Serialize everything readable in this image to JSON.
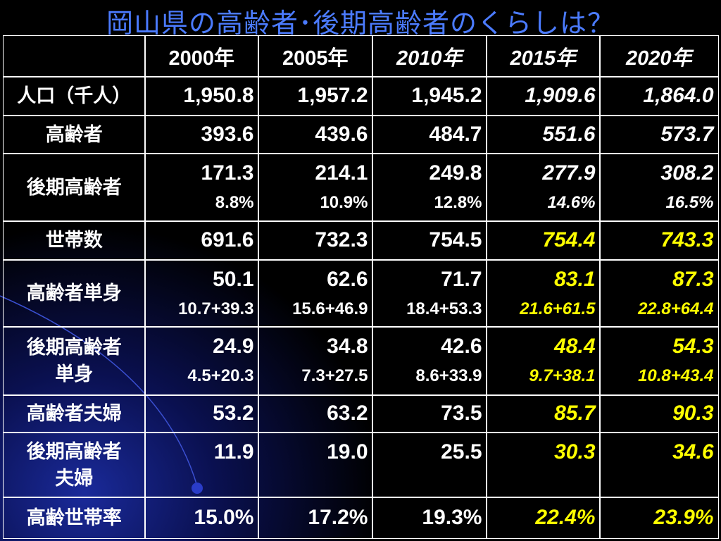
{
  "header": {
    "title": "岡山県の高齢者･後期高齢者のくらしは？"
  },
  "table": {
    "columns": [
      "2000年",
      "2005年",
      "2010年",
      "2015年",
      "2020年"
    ],
    "rows": [
      {
        "label_lines": [
          "人口（千人）"
        ],
        "cells": [
          {
            "main": "1,950.8"
          },
          {
            "main": "1,957.2"
          },
          {
            "main": "1,945.2"
          },
          {
            "main": "1,909.6"
          },
          {
            "main": "1,864.0"
          }
        ]
      },
      {
        "label_lines": [
          "高齢者"
        ],
        "cells": [
          {
            "main": "393.6"
          },
          {
            "main": "439.6"
          },
          {
            "main": "484.7"
          },
          {
            "main": "551.6"
          },
          {
            "main": "573.7"
          }
        ]
      },
      {
        "label_lines": [
          "後期高齢者"
        ],
        "cells": [
          {
            "main": "171.3",
            "sub": "8.8%"
          },
          {
            "main": "214.1",
            "sub": "10.9%"
          },
          {
            "main": "249.8",
            "sub": "12.8%"
          },
          {
            "main": "277.9",
            "sub": "14.6%"
          },
          {
            "main": "308.2",
            "sub": "16.5%"
          }
        ]
      },
      {
        "label_lines": [
          "世帯数"
        ],
        "cells": [
          {
            "main": "691.6"
          },
          {
            "main": "732.3"
          },
          {
            "main": "754.5"
          },
          {
            "main": "754.4"
          },
          {
            "main": "743.3"
          }
        ]
      },
      {
        "label_lines": [
          "高齢者単身"
        ],
        "cells": [
          {
            "main": "50.1",
            "sub": "10.7+39.3"
          },
          {
            "main": "62.6",
            "sub": "15.6+46.9"
          },
          {
            "main": "71.7",
            "sub": "18.4+53.3"
          },
          {
            "main": "83.1",
            "sub": "21.6+61.5"
          },
          {
            "main": "87.3",
            "sub": "22.8+64.4"
          }
        ]
      },
      {
        "label_lines": [
          "後期高齢者",
          "単身"
        ],
        "cells": [
          {
            "main": "24.9",
            "sub": "4.5+20.3"
          },
          {
            "main": "34.8",
            "sub": "7.3+27.5"
          },
          {
            "main": "42.6",
            "sub": "8.6+33.9"
          },
          {
            "main": "48.4",
            "sub": "9.7+38.1"
          },
          {
            "main": "54.3",
            "sub": "10.8+43.4"
          }
        ]
      },
      {
        "label_lines": [
          "高齢者夫婦"
        ],
        "cells": [
          {
            "main": "53.2"
          },
          {
            "main": "63.2"
          },
          {
            "main": "73.5"
          },
          {
            "main": "85.7"
          },
          {
            "main": "90.3"
          }
        ]
      },
      {
        "label_lines": [
          "後期高齢者",
          "夫婦"
        ],
        "cells": [
          {
            "main": "11.9"
          },
          {
            "main": "19.0"
          },
          {
            "main": "25.5"
          },
          {
            "main": "30.3"
          },
          {
            "main": "34.6"
          }
        ]
      },
      {
        "label_lines": [
          "高齢世帯率"
        ],
        "cells": [
          {
            "main": "15.0%"
          },
          {
            "main": "17.2%"
          },
          {
            "main": "19.3%"
          },
          {
            "main": "22.4%"
          },
          {
            "main": "23.9%"
          }
        ]
      }
    ]
  }
}
